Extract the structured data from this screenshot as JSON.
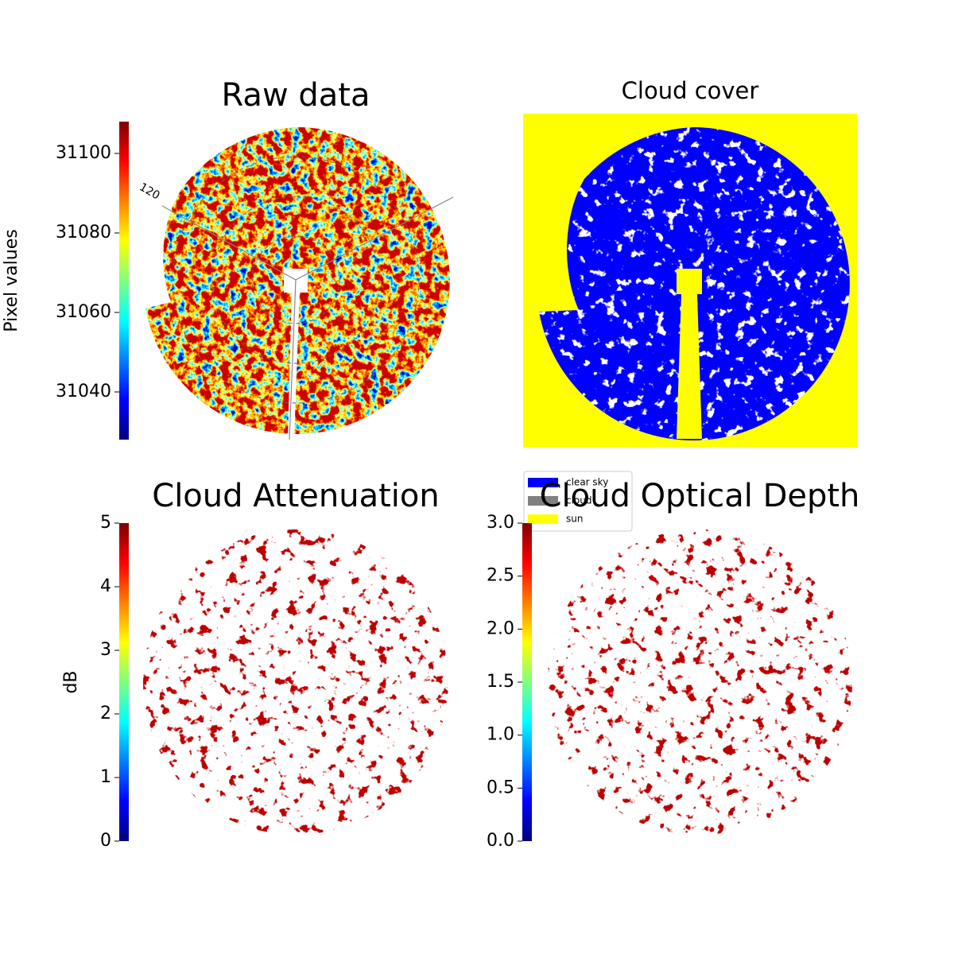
{
  "chart_data": [
    {
      "type": "image",
      "title": "Raw data",
      "colorbar_label": "Pixel values",
      "colormap": "jet",
      "ylim": [
        31028,
        31108
      ],
      "yticks": [
        31040,
        31060,
        31080,
        31100
      ],
      "annotation": "120"
    },
    {
      "type": "image",
      "title": "Cloud cover",
      "categories": [
        "clear sky",
        "cloud",
        "sun"
      ],
      "colors": [
        "#0000ff",
        "#808080",
        "#ffff00"
      ]
    },
    {
      "type": "image",
      "title": "Cloud Attenuation",
      "colorbar_label": "dB",
      "colormap": "jet",
      "ylim": [
        0,
        5
      ],
      "yticks": [
        0,
        1,
        2,
        3,
        4,
        5
      ]
    },
    {
      "type": "image",
      "title": "Cloud Optical Depth",
      "colormap": "jet",
      "ylim": [
        0,
        3
      ],
      "yticks": [
        {
          "value": 0,
          "label": "0.0"
        },
        {
          "value": 0.5,
          "label": "0.5"
        },
        {
          "value": 1,
          "label": "1.0"
        },
        {
          "value": 1.5,
          "label": "1.5"
        },
        {
          "value": 2,
          "label": "2.0"
        },
        {
          "value": 2.5,
          "label": "2.5"
        },
        {
          "value": 3,
          "label": "3.0"
        }
      ]
    }
  ]
}
